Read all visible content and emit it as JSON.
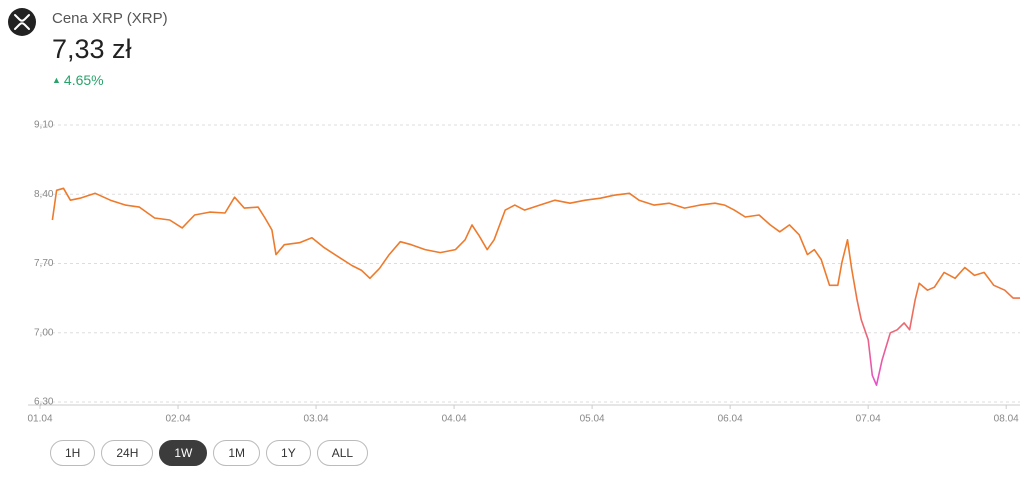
{
  "header": {
    "title": "Cena XRP (XRP)",
    "price": "7,33 zł",
    "change": "4.65%"
  },
  "chart_data": {
    "type": "line",
    "x": [
      1.09,
      1.12,
      1.17,
      1.22,
      1.29,
      1.4,
      1.51,
      1.62,
      1.72,
      1.83,
      1.94,
      2.03,
      2.12,
      2.23,
      2.34,
      2.41,
      2.48,
      2.58,
      2.63,
      2.68,
      2.71,
      2.77,
      2.88,
      2.97,
      3.06,
      3.17,
      3.26,
      3.33,
      3.39,
      3.46,
      3.53,
      3.61,
      3.69,
      3.79,
      3.9,
      4.01,
      4.08,
      4.13,
      4.19,
      4.24,
      4.29,
      4.37,
      4.44,
      4.51,
      4.62,
      4.73,
      4.84,
      4.95,
      5.06,
      5.16,
      5.27,
      5.34,
      5.45,
      5.56,
      5.67,
      5.78,
      5.89,
      5.96,
      6.03,
      6.11,
      6.21,
      6.29,
      6.36,
      6.43,
      6.5,
      6.56,
      6.61,
      6.66,
      6.72,
      6.78,
      6.81,
      6.85,
      6.88,
      6.92,
      6.95,
      7.0,
      7.03,
      7.06,
      7.1,
      7.16,
      7.21,
      7.26,
      7.3,
      7.34,
      7.37,
      7.43,
      7.48,
      7.55,
      7.63,
      7.7,
      7.77,
      7.84,
      7.91,
      7.99,
      8.05,
      8.1
    ],
    "values": [
      8.14,
      8.44,
      8.46,
      8.34,
      8.36,
      8.41,
      8.34,
      8.29,
      8.27,
      8.16,
      8.14,
      8.06,
      8.19,
      8.22,
      8.21,
      8.37,
      8.26,
      8.27,
      8.16,
      8.04,
      7.79,
      7.89,
      7.91,
      7.96,
      7.86,
      7.76,
      7.68,
      7.63,
      7.55,
      7.65,
      7.79,
      7.92,
      7.89,
      7.84,
      7.81,
      7.84,
      7.94,
      8.09,
      7.96,
      7.84,
      7.94,
      8.24,
      8.29,
      8.24,
      8.29,
      8.34,
      8.31,
      8.34,
      8.36,
      8.39,
      8.41,
      8.34,
      8.29,
      8.31,
      8.26,
      8.29,
      8.31,
      8.29,
      8.24,
      8.17,
      8.19,
      8.09,
      8.02,
      8.09,
      7.99,
      7.79,
      7.84,
      7.74,
      7.48,
      7.48,
      7.71,
      7.94,
      7.65,
      7.33,
      7.13,
      6.93,
      6.57,
      6.47,
      6.72,
      7.0,
      7.03,
      7.1,
      7.03,
      7.33,
      7.5,
      7.43,
      7.46,
      7.61,
      7.55,
      7.66,
      7.58,
      7.61,
      7.48,
      7.43,
      7.35,
      7.35
    ],
    "color": "#ee7a2c",
    "low_color": "#e64fd2",
    "xlim": [
      1,
      8.1
    ],
    "xticks": [
      {
        "value": 1,
        "label": "01.04"
      },
      {
        "value": 2,
        "label": "02.04"
      },
      {
        "value": 3,
        "label": "03.04"
      },
      {
        "value": 4,
        "label": "04.04"
      },
      {
        "value": 5,
        "label": "05.04"
      },
      {
        "value": 6,
        "label": "06.04"
      },
      {
        "value": 7,
        "label": "07.04"
      },
      {
        "value": 8,
        "label": "08.04"
      }
    ],
    "ylim": [
      6.3,
      9.1
    ],
    "yticks": [
      {
        "value": 9.1,
        "label": "9,10"
      },
      {
        "value": 8.4,
        "label": "8,40"
      },
      {
        "value": 7.7,
        "label": "7,70"
      },
      {
        "value": 7,
        "label": "7,00"
      },
      {
        "value": 6.3,
        "label": "6,30"
      }
    ],
    "grid": true
  },
  "buttons": [
    "1H",
    "24H",
    "1W",
    "1M",
    "1Y",
    "ALL"
  ],
  "selected_button": 2
}
